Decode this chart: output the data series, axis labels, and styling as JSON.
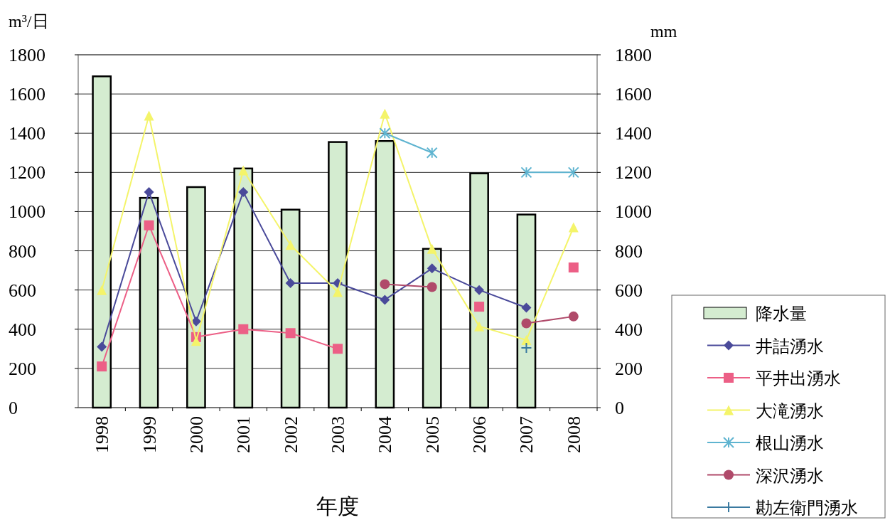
{
  "chart_data": {
    "type": "line",
    "xlabel": "年度",
    "ylabel": "m³/日",
    "y2label": "mm",
    "categories": [
      "1998",
      "1999",
      "2000",
      "2001",
      "2002",
      "2003",
      "2004",
      "2005",
      "2006",
      "2007",
      "2008"
    ],
    "ylim": [
      0,
      1800
    ],
    "yticks": [
      0,
      200,
      400,
      600,
      800,
      1000,
      1200,
      1400,
      1600,
      1800
    ],
    "y2lim": [
      0,
      1800
    ],
    "y2ticks": [
      0,
      200,
      400,
      600,
      800,
      1000,
      1200,
      1400,
      1600,
      1800
    ],
    "grid": "y",
    "legend": "bottom right",
    "series": [
      {
        "name": "降水量",
        "type": "bar",
        "axis": "y2",
        "color": "#d4ecd0",
        "values": [
          1690,
          1070,
          1125,
          1220,
          1010,
          1355,
          1360,
          810,
          1195,
          985,
          null
        ]
      },
      {
        "name": "井詰湧水",
        "color": "#4a4a9a",
        "marker": "diamond",
        "values": [
          310,
          1100,
          440,
          1100,
          635,
          635,
          550,
          710,
          600,
          510,
          null
        ]
      },
      {
        "name": "平井出湧水",
        "color": "#ec5f86",
        "marker": "square",
        "values": [
          210,
          930,
          360,
          400,
          380,
          300,
          null,
          null,
          515,
          null,
          715
        ]
      },
      {
        "name": "大滝湧水",
        "color": "#f4f46a",
        "marker": "triangle",
        "values": [
          600,
          1490,
          340,
          1210,
          830,
          590,
          1500,
          810,
          415,
          345,
          920
        ]
      },
      {
        "name": "根山湧水",
        "color": "#5fb4d0",
        "marker": "cross",
        "values": [
          null,
          null,
          null,
          null,
          null,
          null,
          1400,
          1300,
          null,
          1200,
          1200
        ]
      },
      {
        "name": "深沢湧水",
        "color": "#b04a6a",
        "marker": "circle",
        "values": [
          null,
          null,
          null,
          null,
          null,
          null,
          630,
          615,
          null,
          430,
          465
        ]
      },
      {
        "name": "勘左衛門湧水",
        "color": "#3a7aa0",
        "marker": "plus",
        "values": [
          null,
          null,
          null,
          null,
          null,
          null,
          null,
          null,
          null,
          305,
          null
        ]
      }
    ]
  }
}
